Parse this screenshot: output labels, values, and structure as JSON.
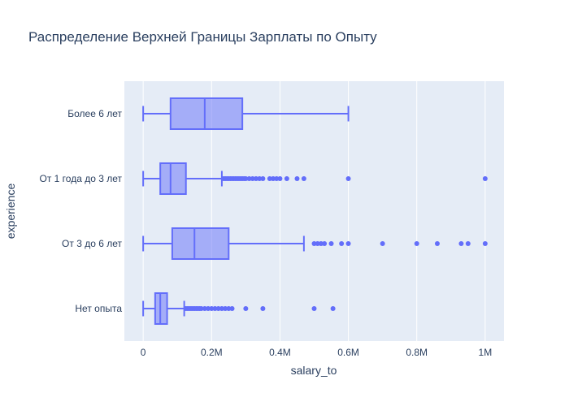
{
  "colors": {
    "plot_bg": "#E5ECF6",
    "grid": "#ffffff",
    "box_line": "#636EFA",
    "box_fill": "rgba(99,110,250,0.5)",
    "text": "#2a3f5f"
  },
  "chart_data": {
    "type": "box",
    "orientation": "horizontal",
    "title": "Распределение Верхней Границы Зарплаты по Опыту",
    "xlabel": "salary_to",
    "ylabel": "experience",
    "xlim": [
      -55000,
      1055000
    ],
    "grid": true,
    "x_ticks": [
      {
        "value": 0,
        "label": "0"
      },
      {
        "value": 200000,
        "label": "0.2M"
      },
      {
        "value": 400000,
        "label": "0.4M"
      },
      {
        "value": 600000,
        "label": "0.6M"
      },
      {
        "value": 800000,
        "label": "0.8M"
      },
      {
        "value": 1000000,
        "label": "1M"
      }
    ],
    "categories": [
      "Более 6 лет",
      "От 1 года до 3 лет",
      "От 3 до 6 лет",
      "Нет опыта"
    ],
    "boxes": [
      {
        "category": "Более 6 лет",
        "min": 0,
        "q1": 80000,
        "median": 180000,
        "q3": 290000,
        "max": 600000,
        "outliers": []
      },
      {
        "category": "От 1 года до 3 лет",
        "min": 0,
        "q1": 50000,
        "median": 80000,
        "q3": 125000,
        "max": 230000,
        "outliers": [
          235000,
          240000,
          245000,
          250000,
          255000,
          260000,
          265000,
          270000,
          275000,
          280000,
          285000,
          290000,
          295000,
          300000,
          310000,
          320000,
          330000,
          340000,
          350000,
          370000,
          380000,
          390000,
          400000,
          420000,
          450000,
          470000,
          600000,
          1000000
        ]
      },
      {
        "category": "От 3 до 6 лет",
        "min": 0,
        "q1": 85000,
        "median": 150000,
        "q3": 250000,
        "max": 470000,
        "outliers": [
          500000,
          510000,
          520000,
          530000,
          550000,
          580000,
          600000,
          700000,
          800000,
          860000,
          930000,
          950000,
          1000000
        ]
      },
      {
        "category": "Нет опыта",
        "min": 0,
        "q1": 35000,
        "median": 50000,
        "q3": 70000,
        "max": 120000,
        "outliers": [
          125000,
          130000,
          135000,
          140000,
          145000,
          150000,
          155000,
          160000,
          165000,
          170000,
          180000,
          190000,
          200000,
          210000,
          220000,
          230000,
          240000,
          250000,
          260000,
          300000,
          350000,
          500000,
          555000
        ]
      }
    ]
  }
}
